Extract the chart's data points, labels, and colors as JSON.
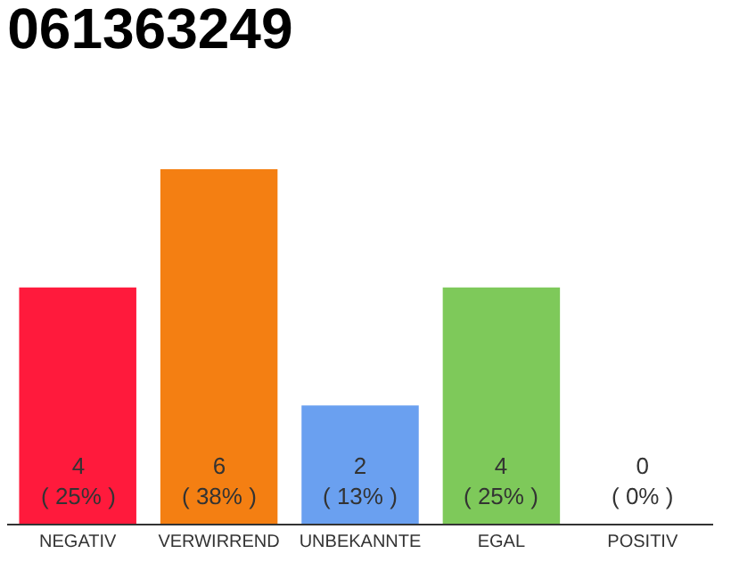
{
  "chart_data": {
    "type": "bar",
    "title": "061363249",
    "categories": [
      "NEGATIV",
      "VERWIRREND",
      "UNBEKANNTE",
      "EGAL",
      "POSITIV"
    ],
    "values": [
      4,
      6,
      2,
      4,
      0
    ],
    "colors": [
      "#ff1a3c",
      "#f47f12",
      "#6aa0f0",
      "#7ec95a",
      "#cccccc"
    ],
    "value_labels": [
      "4\n( 25% )",
      "6\n( 38% )",
      "2\n( 13% )",
      "4\n( 25% )",
      "0\n( 0% )"
    ],
    "ylim": [
      0,
      6
    ],
    "tick_labels": "x",
    "legend": false
  }
}
